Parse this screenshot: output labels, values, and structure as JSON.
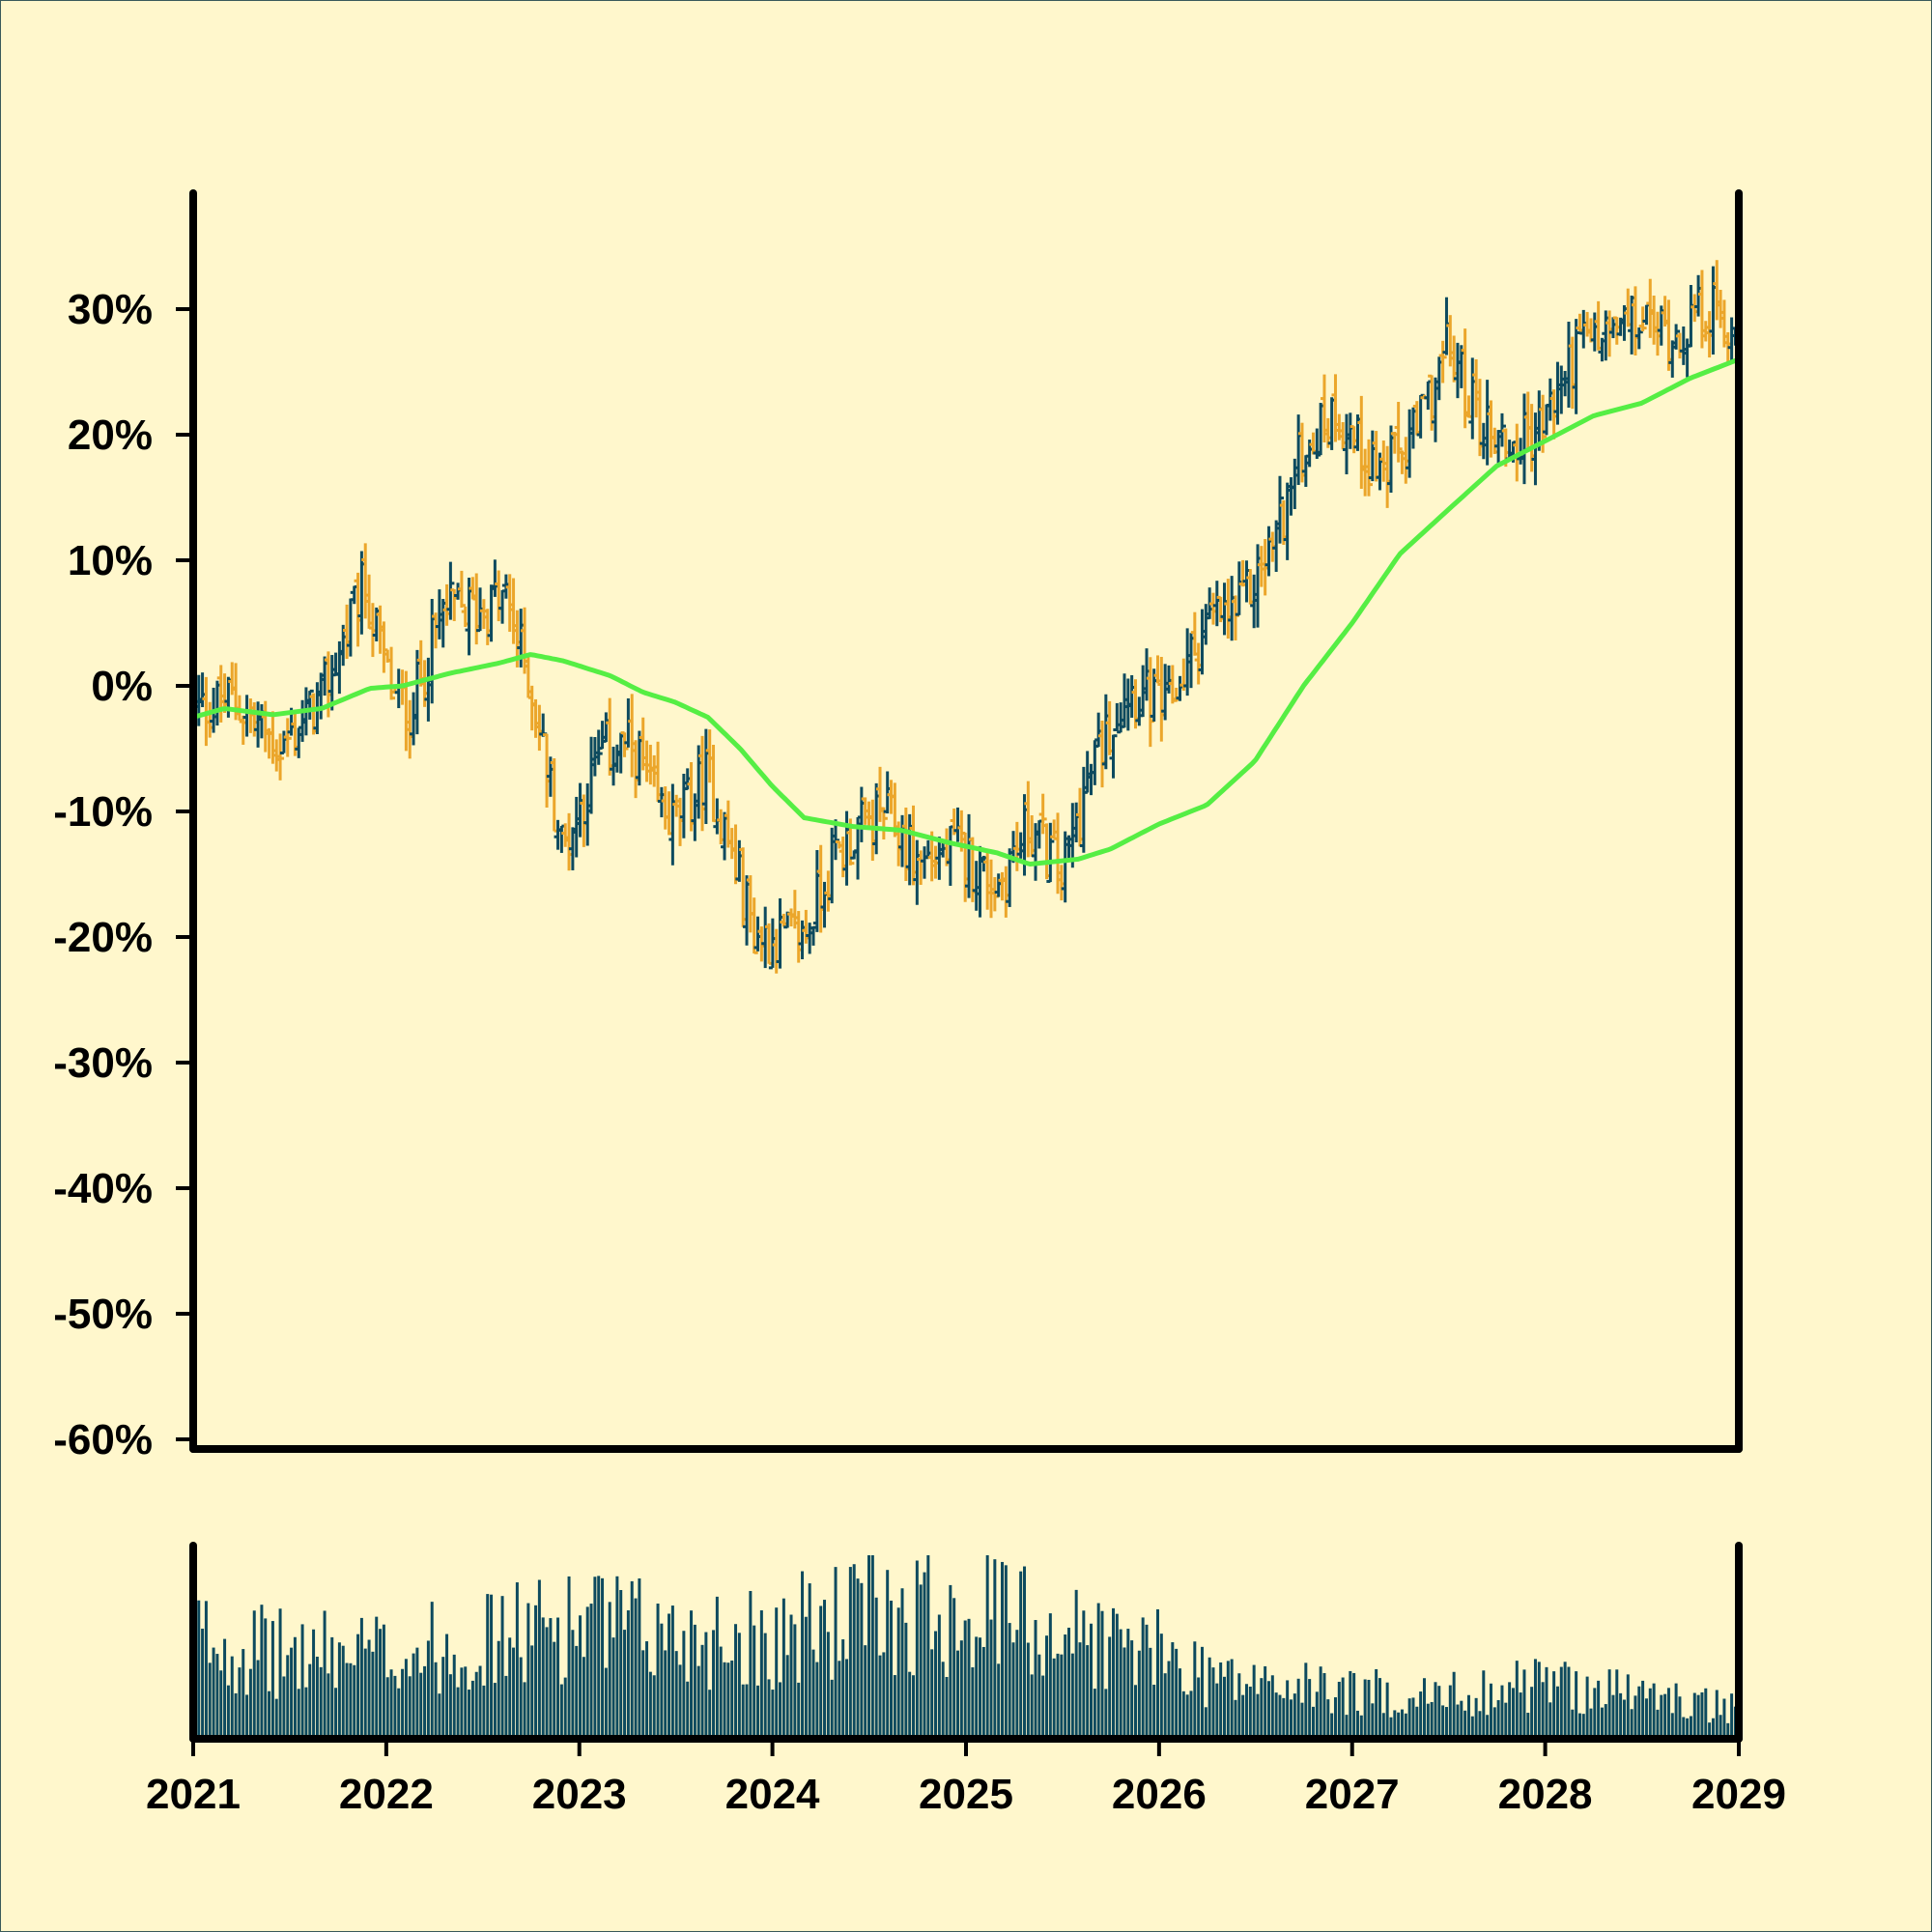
{
  "colors": {
    "background": "#fff7cc",
    "border": "#3a5a5a",
    "axis": "#000000",
    "bar_up": "#0d4a5e",
    "bar_down": "#eba62b",
    "moving_average": "#55ee44",
    "volume": "#0d4a5e"
  },
  "chart_data": {
    "type": "ohlc",
    "title": "",
    "xlabel": "",
    "ylabel": "",
    "price_axis": {
      "unit": "percent",
      "ylim": [
        -60,
        35
      ],
      "ticks": [
        30,
        20,
        10,
        0,
        -10,
        -20,
        -30,
        -40,
        -50,
        -60
      ],
      "tick_labels": [
        "30%",
        "20%",
        "10%",
        "0%",
        "-10%",
        "-20%",
        "-30%",
        "-40%",
        "-50%",
        "-60%"
      ]
    },
    "time_axis": {
      "range": [
        "2021-01-01",
        "2029-01-01"
      ],
      "ticks": [
        "2021-01-01",
        "2022-01-01",
        "2023-01-01",
        "2024-01-01",
        "2025-01-01",
        "2026-01-01",
        "2027-01-01",
        "2028-01-01",
        "2029-01-01"
      ],
      "tick_labels": [
        "2021",
        "2022",
        "2023",
        "2024",
        "2025",
        "2026",
        "2027",
        "2028",
        "2029"
      ]
    },
    "close_path": [
      [
        "2021-01-01",
        -2
      ],
      [
        "2021-03-15",
        -1
      ],
      [
        "2021-06-15",
        -5
      ],
      [
        "2021-09-01",
        -1
      ],
      [
        "2021-11-20",
        8
      ],
      [
        "2022-01-15",
        -1
      ],
      [
        "2022-02-15",
        -2
      ],
      [
        "2022-04-20",
        6
      ],
      [
        "2022-06-15",
        6
      ],
      [
        "2022-08-15",
        7
      ],
      [
        "2022-10-01",
        0
      ],
      [
        "2022-12-01",
        -13
      ],
      [
        "2023-02-15",
        -5
      ],
      [
        "2023-04-15",
        -5
      ],
      [
        "2023-05-20",
        -9
      ],
      [
        "2023-07-01",
        -11
      ],
      [
        "2023-09-01",
        -7
      ],
      [
        "2023-12-01",
        -20
      ],
      [
        "2024-03-01",
        -20
      ],
      [
        "2024-04-20",
        -14
      ],
      [
        "2024-06-01",
        -12
      ],
      [
        "2024-08-01",
        -10
      ],
      [
        "2024-10-01",
        -14
      ],
      [
        "2024-12-15",
        -13
      ],
      [
        "2025-03-01",
        -16
      ],
      [
        "2025-05-01",
        -11
      ],
      [
        "2025-07-01",
        -15
      ],
      [
        "2025-09-01",
        -6
      ],
      [
        "2025-11-01",
        0
      ],
      [
        "2026-01-15",
        -2
      ],
      [
        "2026-04-01",
        5
      ],
      [
        "2026-06-01",
        6
      ],
      [
        "2026-08-01",
        11
      ],
      [
        "2026-10-01",
        19
      ],
      [
        "2026-12-01",
        22
      ],
      [
        "2027-01-15",
        19
      ],
      [
        "2027-03-01",
        17
      ],
      [
        "2027-05-01",
        20
      ],
      [
        "2027-07-01",
        27
      ],
      [
        "2027-09-01",
        21
      ],
      [
        "2027-11-01",
        19
      ],
      [
        "2028-01-01",
        21
      ],
      [
        "2028-03-01",
        27
      ],
      [
        "2028-05-01",
        28
      ],
      [
        "2028-07-01",
        29
      ],
      [
        "2028-09-01",
        28
      ],
      [
        "2028-11-01",
        30
      ],
      [
        "2029-01-01",
        28
      ]
    ],
    "moving_average": [
      [
        "2021-01-01",
        -2.5
      ],
      [
        "2021-03-01",
        -1.8
      ],
      [
        "2021-06-01",
        -2.3
      ],
      [
        "2021-09-01",
        -1.8
      ],
      [
        "2021-12-01",
        -0.2
      ],
      [
        "2022-02-01",
        0
      ],
      [
        "2022-05-01",
        1
      ],
      [
        "2022-08-01",
        1.8
      ],
      [
        "2022-10-01",
        2.5
      ],
      [
        "2022-12-01",
        2
      ],
      [
        "2023-03-01",
        0.8
      ],
      [
        "2023-05-01",
        -0.5
      ],
      [
        "2023-07-01",
        -1.3
      ],
      [
        "2023-09-01",
        -2.5
      ],
      [
        "2023-11-01",
        -5
      ],
      [
        "2024-01-01",
        -8
      ],
      [
        "2024-03-01",
        -10.5
      ],
      [
        "2024-06-01",
        -11.2
      ],
      [
        "2024-09-01",
        -11.5
      ],
      [
        "2024-12-01",
        -12.5
      ],
      [
        "2025-03-01",
        -13.3
      ],
      [
        "2025-05-01",
        -14.2
      ],
      [
        "2025-08-01",
        -13.8
      ],
      [
        "2025-10-01",
        -13
      ],
      [
        "2026-01-01",
        -11
      ],
      [
        "2026-04-01",
        -9.5
      ],
      [
        "2026-07-01",
        -6
      ],
      [
        "2026-10-01",
        0
      ],
      [
        "2027-01-01",
        5
      ],
      [
        "2027-04-01",
        10.5
      ],
      [
        "2027-07-01",
        14
      ],
      [
        "2027-10-01",
        17.5
      ],
      [
        "2028-01-01",
        19.5
      ],
      [
        "2028-04-01",
        21.5
      ],
      [
        "2028-07-01",
        22.5
      ],
      [
        "2028-10-01",
        24.5
      ],
      [
        "2029-01-01",
        26
      ]
    ],
    "volume_profile": [
      [
        "2021-01-01",
        0.55
      ],
      [
        "2021-06-01",
        0.45
      ],
      [
        "2022-01-01",
        0.45
      ],
      [
        "2022-06-01",
        0.5
      ],
      [
        "2023-01-01",
        0.62
      ],
      [
        "2023-06-01",
        0.55
      ],
      [
        "2024-01-01",
        0.55
      ],
      [
        "2024-06-01",
        0.65
      ],
      [
        "2025-01-01",
        0.72
      ],
      [
        "2025-06-01",
        0.6
      ],
      [
        "2026-01-01",
        0.45
      ],
      [
        "2026-06-01",
        0.3
      ],
      [
        "2027-01-01",
        0.25
      ],
      [
        "2027-06-01",
        0.22
      ],
      [
        "2028-01-01",
        0.3
      ],
      [
        "2028-06-01",
        0.25
      ],
      [
        "2029-01-01",
        0.15
      ]
    ],
    "bar_interval_days": 7
  }
}
